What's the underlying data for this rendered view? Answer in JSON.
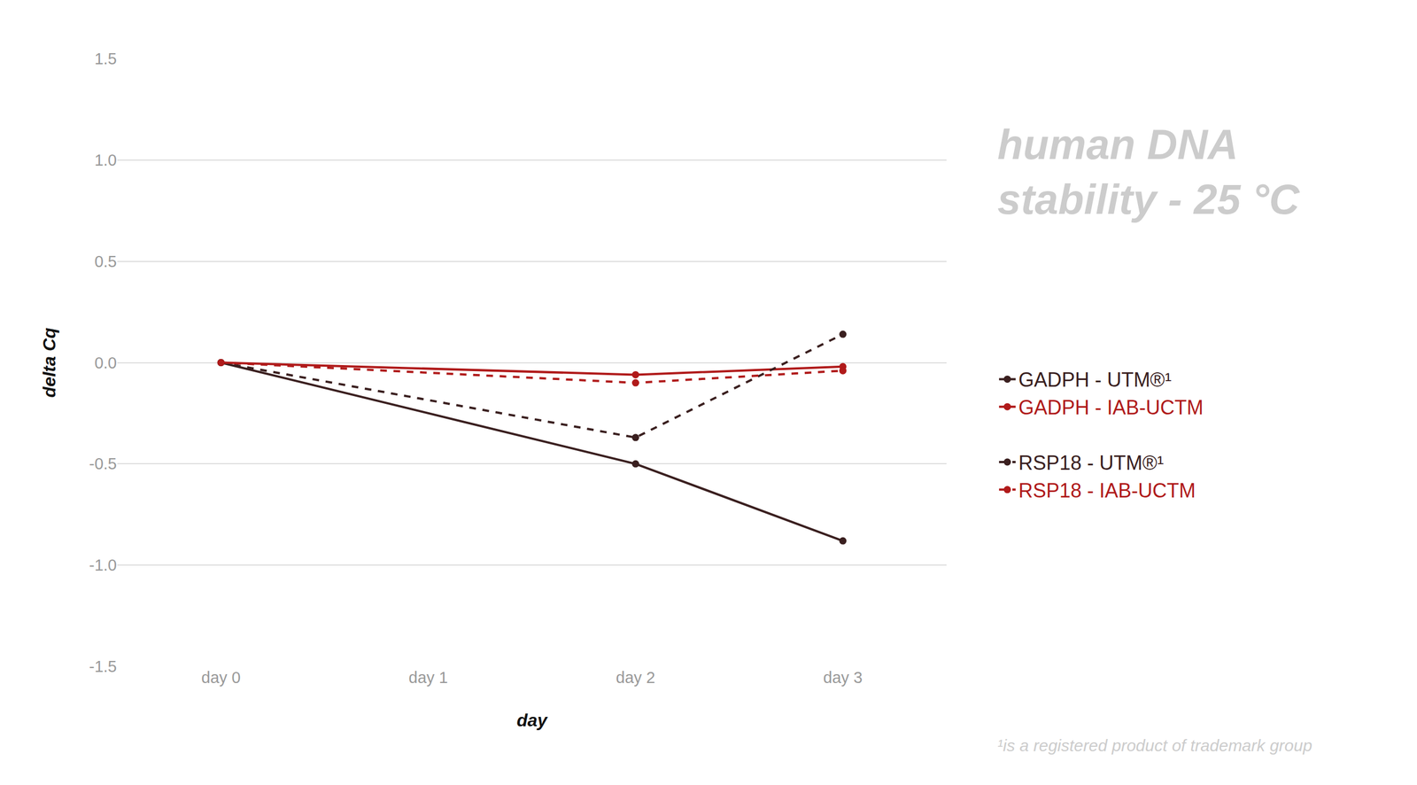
{
  "chart_data": {
    "type": "line",
    "title": "human DNA stability - 25 °C",
    "x_label": "day",
    "y_label": "delta Cq",
    "footnote": "¹is a registered product of trademark group",
    "categories": [
      "day 0",
      "day 1",
      "day 2",
      "day 3"
    ],
    "series": [
      {
        "name": "GADPH - UTM®¹",
        "color": "#3a1f1f",
        "line_style": "solid",
        "marker": "circle",
        "values": [
          0,
          null,
          -0.5,
          -0.88
        ]
      },
      {
        "name": "GADPH - IAB-UCTM",
        "color": "#b01a1a",
        "line_style": "solid",
        "marker": "circle",
        "values": [
          0,
          null,
          -0.06,
          -0.02
        ]
      },
      {
        "name": "RSP18 - UTM®¹",
        "color": "#3a1f1f",
        "line_style": "dash",
        "marker": "circle",
        "values": [
          0,
          null,
          -0.37,
          0.14
        ]
      },
      {
        "name": "RSP18 - IAB-UCTM",
        "color": "#b01a1a",
        "line_style": "dash",
        "marker": "circle",
        "values": [
          0,
          null,
          -0.1,
          -0.04
        ]
      }
    ],
    "ylim": [
      -1.5,
      1.5
    ],
    "yticks": [
      -1.5,
      -1.0,
      -0.5,
      0.0,
      0.5,
      1.0,
      1.5
    ],
    "grid": true,
    "legend": "right"
  }
}
